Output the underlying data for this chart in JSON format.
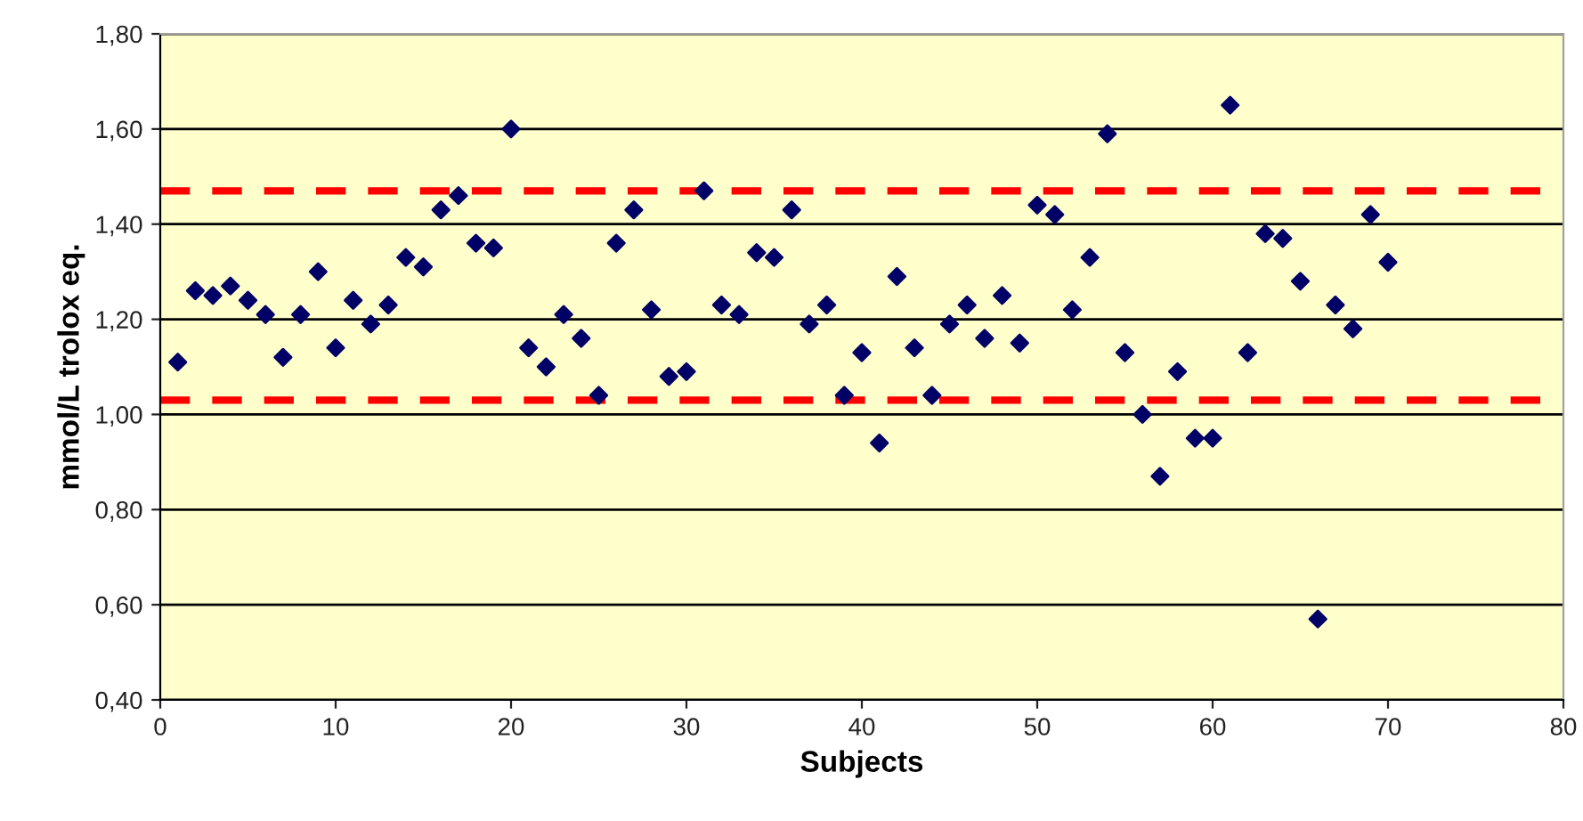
{
  "chart_data": {
    "type": "scatter",
    "xlabel": "Subjects",
    "ylabel": "mmol/L trolox eq.",
    "x": [
      1,
      2,
      3,
      4,
      5,
      6,
      7,
      8,
      9,
      10,
      11,
      12,
      13,
      14,
      15,
      16,
      17,
      18,
      19,
      20,
      21,
      22,
      23,
      24,
      25,
      26,
      27,
      28,
      29,
      30,
      31,
      32,
      33,
      34,
      35,
      36,
      37,
      38,
      39,
      40,
      41,
      42,
      43,
      44,
      45,
      46,
      47,
      48,
      49,
      50,
      51,
      52,
      53,
      54,
      55,
      56,
      57,
      58,
      59,
      60,
      61,
      62,
      63,
      64,
      65,
      66,
      67,
      68,
      69,
      70
    ],
    "series": [
      {
        "color": "#000066",
        "values": [
          1.11,
          1.26,
          1.25,
          1.27,
          1.24,
          1.21,
          1.12,
          1.21,
          1.3,
          1.14,
          1.24,
          1.19,
          1.23,
          1.33,
          1.31,
          1.43,
          1.46,
          1.36,
          1.35,
          1.6,
          1.14,
          1.1,
          1.21,
          1.16,
          1.04,
          1.36,
          1.43,
          1.22,
          1.08,
          1.09,
          1.47,
          1.23,
          1.21,
          1.34,
          1.33,
          1.43,
          1.19,
          1.23,
          1.04,
          1.13,
          0.94,
          1.29,
          1.14,
          1.04,
          1.19,
          1.23,
          1.16,
          1.25,
          1.15,
          1.44,
          1.42,
          1.22,
          1.33,
          1.59,
          1.13,
          1.0,
          0.87,
          1.09,
          0.95,
          0.95,
          1.65,
          1.13,
          1.38,
          1.37,
          1.28,
          0.57,
          1.23,
          1.18,
          1.42,
          1.32
        ]
      }
    ],
    "marker": "diamond",
    "xlim": [
      0,
      80
    ],
    "xticks": [
      0,
      10,
      20,
      30,
      40,
      50,
      60,
      70,
      80
    ],
    "ylim": [
      0.4,
      1.8
    ],
    "yticks": [
      {
        "value": 0.4,
        "label": "0,40"
      },
      {
        "value": 0.6,
        "label": "0,60"
      },
      {
        "value": 0.8,
        "label": "0,80"
      },
      {
        "value": 1.0,
        "label": "1,00"
      },
      {
        "value": 1.2,
        "label": "1,20"
      },
      {
        "value": 1.4,
        "label": "1,40"
      },
      {
        "value": 1.6,
        "label": "1,60"
      },
      {
        "value": 1.8,
        "label": "1,80"
      }
    ],
    "grid": "y",
    "ref_lines": [
      {
        "axis": "y",
        "value": 1.47,
        "color": "#ff0000",
        "line_style": "dashed"
      },
      {
        "axis": "y",
        "value": 1.03,
        "color": "#ff0000",
        "line_style": "dashed"
      }
    ]
  }
}
